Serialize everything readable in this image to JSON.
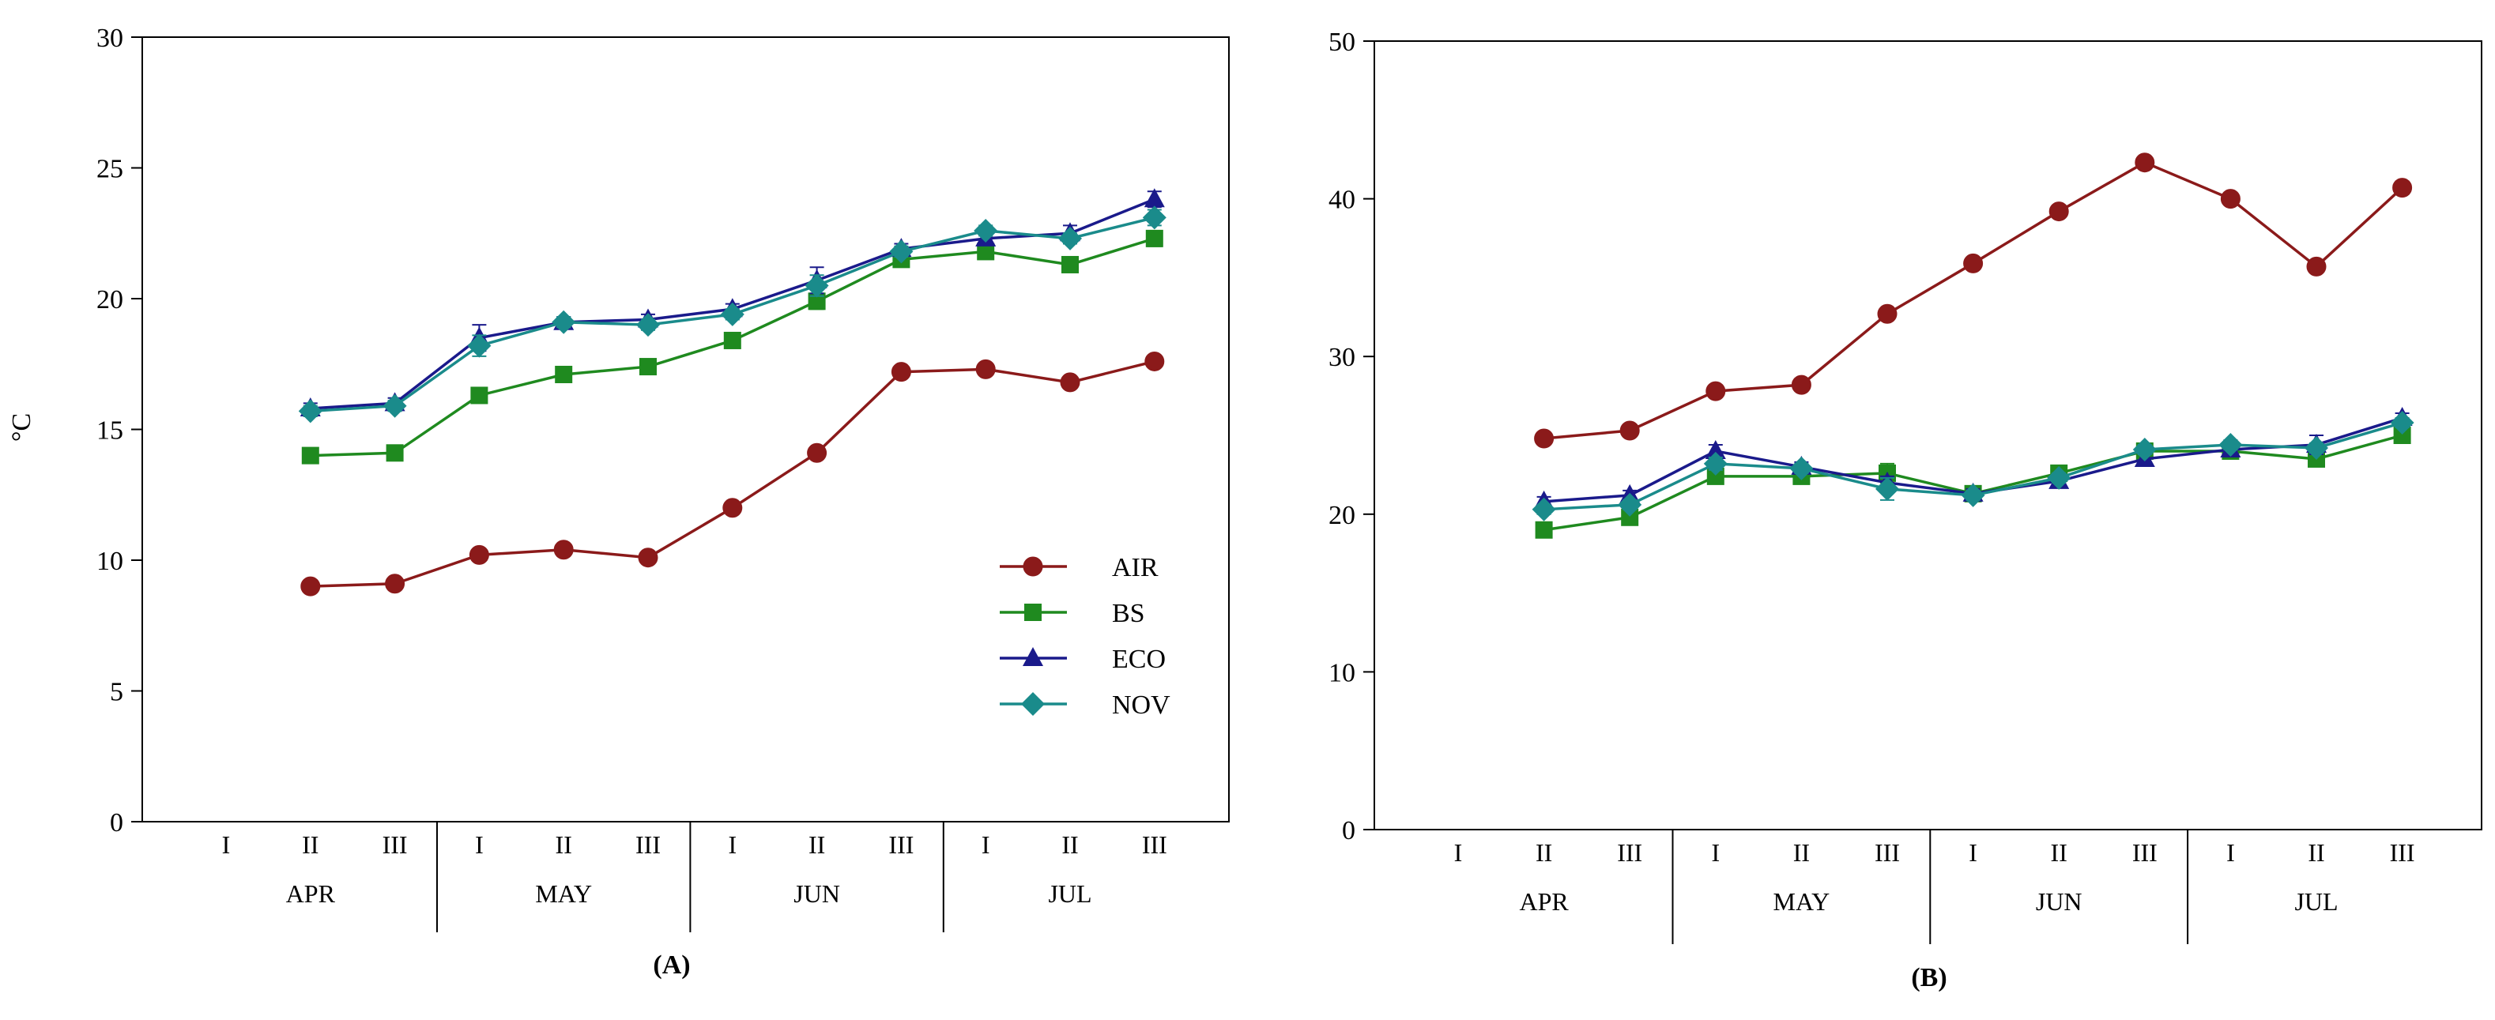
{
  "figure": {
    "y_unit_label": "°C"
  },
  "chart_data": [
    {
      "type": "line",
      "panel": "A",
      "caption": "(A)",
      "title": "",
      "xlabel": "",
      "ylabel": "°C",
      "ylim": [
        0,
        30
      ],
      "yticks": [
        0,
        5,
        10,
        15,
        20,
        25,
        30
      ],
      "x_categories": [
        "I",
        "II",
        "III",
        "I",
        "II",
        "III",
        "I",
        "II",
        "III",
        "I",
        "II",
        "III"
      ],
      "x_groups": [
        {
          "label": "APR",
          "start": 0,
          "end": 2
        },
        {
          "label": "MAY",
          "start": 3,
          "end": 5
        },
        {
          "label": "JUN",
          "start": 6,
          "end": 8
        },
        {
          "label": "JUL",
          "start": 9,
          "end": 11
        }
      ],
      "legend": {
        "position": "bottom-right"
      },
      "series": [
        {
          "name": "AIR",
          "color": "#8B1A1A",
          "marker": "circle",
          "values": [
            null,
            9.0,
            9.1,
            10.2,
            10.4,
            10.1,
            12.0,
            14.1,
            17.2,
            17.3,
            16.8,
            17.6
          ],
          "errors": [
            null,
            0.2,
            0.2,
            0.2,
            0.2,
            0.2,
            0.2,
            0.2,
            0.2,
            0.2,
            0.2,
            0.2
          ]
        },
        {
          "name": "BS",
          "color": "#1F8A1F",
          "marker": "square",
          "values": [
            null,
            14.0,
            14.1,
            16.3,
            17.1,
            17.4,
            18.4,
            19.9,
            21.5,
            21.8,
            21.3,
            22.3
          ],
          "errors": [
            null,
            0.2,
            0.2,
            0.2,
            0.2,
            0.2,
            0.2,
            0.3,
            0.2,
            0.2,
            0.2,
            0.3
          ]
        },
        {
          "name": "ECO",
          "color": "#1A1A8B",
          "marker": "triangle",
          "values": [
            null,
            15.8,
            16.0,
            18.5,
            19.1,
            19.2,
            19.6,
            20.7,
            21.9,
            22.3,
            22.5,
            23.8
          ],
          "errors": [
            null,
            0.2,
            0.2,
            0.5,
            0.2,
            0.2,
            0.2,
            0.5,
            0.2,
            0.2,
            0.3,
            0.3
          ]
        },
        {
          "name": "NOV",
          "color": "#1A8B8B",
          "marker": "diamond",
          "values": [
            null,
            15.7,
            15.9,
            18.2,
            19.1,
            19.0,
            19.4,
            20.5,
            21.8,
            22.6,
            22.3,
            23.1
          ],
          "errors": [
            null,
            0.2,
            0.2,
            0.4,
            0.2,
            0.2,
            0.2,
            0.4,
            0.2,
            0.2,
            0.2,
            0.3
          ]
        }
      ]
    },
    {
      "type": "line",
      "panel": "B",
      "caption": "(B)",
      "title": "",
      "xlabel": "",
      "ylabel": "",
      "ylim": [
        0,
        50
      ],
      "yticks": [
        0,
        10,
        20,
        30,
        40,
        50
      ],
      "x_categories": [
        "I",
        "II",
        "III",
        "I",
        "II",
        "III",
        "I",
        "II",
        "III",
        "I",
        "II",
        "III"
      ],
      "x_groups": [
        {
          "label": "APR",
          "start": 0,
          "end": 2
        },
        {
          "label": "MAY",
          "start": 3,
          "end": 5
        },
        {
          "label": "JUN",
          "start": 6,
          "end": 8
        },
        {
          "label": "JUL",
          "start": 9,
          "end": 11
        }
      ],
      "series": [
        {
          "name": "AIR",
          "color": "#8B1A1A",
          "marker": "circle",
          "values": [
            null,
            24.8,
            25.3,
            27.8,
            28.2,
            32.7,
            35.9,
            39.2,
            42.3,
            40.0,
            35.7,
            40.7
          ],
          "errors": [
            null,
            0.3,
            0.3,
            0.3,
            0.3,
            0.3,
            0.3,
            0.3,
            0.3,
            0.3,
            0.3,
            0.4
          ]
        },
        {
          "name": "BS",
          "color": "#1F8A1F",
          "marker": "square",
          "values": [
            null,
            19.0,
            19.8,
            22.4,
            22.4,
            22.6,
            21.3,
            22.6,
            24.0,
            24.0,
            23.5,
            25.0
          ],
          "errors": [
            null,
            0.3,
            0.3,
            0.4,
            0.3,
            0.6,
            0.3,
            0.3,
            0.3,
            0.3,
            0.3,
            0.3
          ]
        },
        {
          "name": "ECO",
          "color": "#1A1A8B",
          "marker": "triangle",
          "values": [
            null,
            20.8,
            21.2,
            24.0,
            23.0,
            22.0,
            21.3,
            22.1,
            23.5,
            24.1,
            24.4,
            26.1
          ],
          "errors": [
            null,
            0.3,
            0.3,
            0.4,
            0.3,
            0.4,
            0.3,
            0.3,
            0.3,
            0.3,
            0.6,
            0.3
          ]
        },
        {
          "name": "NOV",
          "color": "#1A8B8B",
          "marker": "diamond",
          "values": [
            null,
            20.3,
            20.6,
            23.2,
            22.9,
            21.6,
            21.2,
            22.3,
            24.1,
            24.4,
            24.2,
            25.8
          ],
          "errors": [
            null,
            0.3,
            0.3,
            0.4,
            0.3,
            0.7,
            0.3,
            0.3,
            0.3,
            0.3,
            0.3,
            0.3
          ]
        }
      ]
    }
  ]
}
